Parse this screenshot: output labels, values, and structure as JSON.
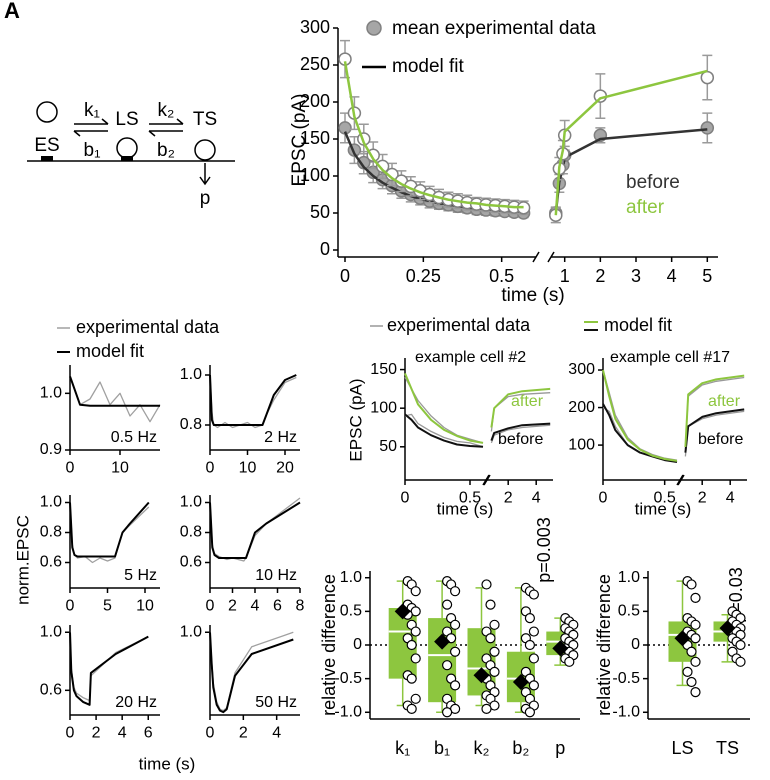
{
  "panel_label": "A",
  "diagram": {
    "states": [
      "ES",
      "LS",
      "TS"
    ],
    "rates": [
      "k₁",
      "b₁",
      "k₂",
      "b₂"
    ],
    "release": "p"
  },
  "chart_data": [
    {
      "type": "line",
      "ylabel": "EPSC (pA)",
      "xlabel": "time (s)",
      "legend": [
        "mean experimental data",
        "model fit"
      ],
      "xlim": [
        0,
        0.6
      ],
      "xticks": [
        0,
        0.25,
        0.5
      ],
      "x2lim": [
        0.7,
        5.3
      ],
      "x2ticks": [
        1,
        2,
        3,
        4,
        5
      ],
      "ylim": [
        0,
        300
      ],
      "yticks": [
        0,
        50,
        100,
        150,
        200,
        250,
        300
      ],
      "x": [
        0,
        0.03,
        0.06,
        0.09,
        0.12,
        0.15,
        0.18,
        0.21,
        0.24,
        0.27,
        0.3,
        0.33,
        0.36,
        0.39,
        0.42,
        0.45,
        0.48,
        0.51,
        0.54,
        0.57,
        0.75,
        0.85,
        0.95,
        1,
        2,
        5
      ],
      "series": [
        {
          "name": "before",
          "marker": true,
          "color": "#a6a6a6",
          "fit_color": "#333333",
          "values": [
            165,
            135,
            118,
            105,
            95,
            87,
            80,
            75,
            70,
            66,
            63,
            61,
            59,
            57,
            55,
            54,
            53,
            52,
            51,
            50,
            50,
            90,
            115,
            128,
            155,
            165
          ],
          "errors": [
            20,
            18,
            15,
            14,
            12,
            11,
            10,
            10,
            9,
            9,
            8,
            8,
            8,
            7,
            7,
            7,
            7,
            6,
            6,
            6,
            8,
            12,
            12,
            12,
            10,
            20
          ],
          "fit": [
            160,
            130,
            112,
            100,
            91,
            84,
            78,
            73,
            69,
            66,
            63,
            61,
            59,
            57,
            56,
            55,
            54,
            53,
            52,
            52,
            50,
            92,
            112,
            125,
            150,
            163
          ]
        },
        {
          "name": "after",
          "marker": true,
          "color": "#ffffff",
          "fit_color": "#8dc63f",
          "values": [
            258,
            185,
            150,
            128,
            113,
            102,
            93,
            86,
            80,
            75,
            71,
            68,
            66,
            64,
            62,
            61,
            60,
            59,
            58,
            57,
            47,
            110,
            130,
            155,
            208,
            233
          ],
          "errors": [
            25,
            22,
            20,
            18,
            16,
            15,
            14,
            13,
            12,
            11,
            11,
            10,
            10,
            10,
            9,
            9,
            9,
            9,
            9,
            9,
            10,
            15,
            18,
            20,
            30,
            30
          ],
          "fit": [
            255,
            180,
            145,
            123,
            108,
            97,
            89,
            83,
            78,
            74,
            71,
            68,
            66,
            64,
            63,
            61,
            60,
            59,
            58,
            58,
            47,
            112,
            135,
            160,
            205,
            242
          ]
        }
      ]
    },
    {
      "type": "line",
      "ylabel": "norm.EPSC",
      "xlabel": "time (s)",
      "legend": [
        "experimental data",
        "model fit"
      ],
      "annotation": "0.5 Hz",
      "xlim": [
        0,
        18
      ],
      "xticks": [
        0,
        10
      ],
      "ylim": [
        0.9,
        1.05
      ],
      "yticks": [
        0.9,
        {
          "value": 1,
          "label": "1.0"
        }
      ],
      "x": [
        0,
        2,
        4,
        6,
        8,
        10,
        12,
        14,
        16,
        18
      ],
      "series": [
        {
          "color": "#a0a0a0",
          "values": [
            1.03,
            0.98,
            0.99,
            1.02,
            0.98,
            1.0,
            0.96,
            0.98,
            0.95,
            0.98
          ]
        },
        {
          "color": "#000000",
          "values": [
            1.03,
            0.98,
            0.978,
            0.978,
            0.978,
            0.978,
            0.978,
            0.978,
            0.978,
            0.978
          ]
        }
      ]
    },
    {
      "type": "line",
      "annotation": "2 Hz",
      "xlim": [
        0,
        24
      ],
      "xticks": [
        0,
        10,
        20
      ],
      "ylim": [
        0.7,
        1.04
      ],
      "yticks": [
        0.8,
        {
          "value": 1,
          "label": "1.0"
        }
      ],
      "x": [
        0,
        0.5,
        1,
        2,
        4,
        6,
        8,
        10,
        12,
        14,
        15,
        17,
        20,
        23
      ],
      "series": [
        {
          "color": "#a0a0a0",
          "values": [
            1.0,
            0.85,
            0.8,
            0.79,
            0.81,
            0.79,
            0.8,
            0.81,
            0.79,
            0.8,
            0.84,
            0.9,
            0.97,
            0.99
          ]
        },
        {
          "color": "#000000",
          "values": [
            1.0,
            0.82,
            0.8,
            0.8,
            0.8,
            0.8,
            0.8,
            0.8,
            0.8,
            0.8,
            0.84,
            0.92,
            0.98,
            1.0
          ]
        }
      ]
    },
    {
      "type": "line",
      "annotation": "5 Hz",
      "xlim": [
        0,
        12
      ],
      "xticks": [
        0,
        5,
        10
      ],
      "ylim": [
        0.43,
        1.05
      ],
      "yticks": [
        0.6,
        0.8,
        {
          "value": 1,
          "label": "1.0"
        }
      ],
      "x": [
        0,
        0.3,
        0.6,
        1,
        2,
        3,
        4,
        5,
        6,
        7,
        8,
        10.5
      ],
      "series": [
        {
          "color": "#a0a0a0",
          "values": [
            1.0,
            0.72,
            0.65,
            0.63,
            0.64,
            0.6,
            0.63,
            0.61,
            0.63,
            0.8,
            0.85,
            0.97
          ]
        },
        {
          "color": "#000000",
          "values": [
            1.0,
            0.7,
            0.65,
            0.64,
            0.64,
            0.64,
            0.64,
            0.64,
            0.64,
            0.8,
            0.86,
            1.0
          ]
        }
      ]
    },
    {
      "type": "line",
      "annotation": "10 Hz",
      "xlim": [
        0,
        8
      ],
      "xticks": [
        0,
        2,
        4,
        6,
        8
      ],
      "ylim": [
        0.43,
        1.05
      ],
      "yticks": [
        0.6,
        0.8,
        {
          "value": 1,
          "label": "1.0"
        }
      ],
      "x": [
        0,
        0.2,
        0.4,
        0.8,
        1.5,
        2,
        3,
        3.2,
        4,
        5,
        8
      ],
      "series": [
        {
          "color": "#a0a0a0",
          "values": [
            1.0,
            0.72,
            0.66,
            0.64,
            0.62,
            0.63,
            0.61,
            0.63,
            0.78,
            0.86,
            1.03
          ]
        },
        {
          "color": "#000000",
          "values": [
            1.0,
            0.7,
            0.65,
            0.63,
            0.63,
            0.63,
            0.63,
            0.63,
            0.8,
            0.86,
            1.0
          ]
        }
      ]
    },
    {
      "type": "line",
      "annotation": "20 Hz",
      "xlim": [
        0,
        6.9
      ],
      "xticks": [
        0,
        2,
        4,
        6
      ],
      "ylim": [
        0.43,
        1.05
      ],
      "yticks": [
        0.6,
        {
          "value": 1,
          "label": "1.0"
        }
      ],
      "x": [
        0,
        0.1,
        0.3,
        0.5,
        1,
        1.5,
        1.6,
        3.5,
        6
      ],
      "series": [
        {
          "color": "#a0a0a0",
          "values": [
            1.0,
            0.75,
            0.62,
            0.58,
            0.55,
            0.53,
            0.7,
            0.86,
            0.97
          ]
        },
        {
          "color": "#000000",
          "values": [
            1.0,
            0.73,
            0.6,
            0.56,
            0.52,
            0.5,
            0.72,
            0.85,
            0.97
          ]
        }
      ]
    },
    {
      "type": "line",
      "annotation": "50 Hz",
      "xlim": [
        0,
        5.4
      ],
      "xticks": [
        0,
        2,
        4
      ],
      "ylim": [
        0.43,
        1.05
      ],
      "yticks": [
        {
          "value": 1,
          "label": "1.0"
        }
      ],
      "x": [
        0,
        0.1,
        0.2,
        0.4,
        0.6,
        0.8,
        1,
        1.5,
        2.5,
        5
      ],
      "series": [
        {
          "color": "#a0a0a0",
          "values": [
            1.0,
            0.8,
            0.65,
            0.52,
            0.47,
            0.46,
            0.48,
            0.72,
            0.9,
            1.0
          ]
        },
        {
          "color": "#000000",
          "values": [
            1.0,
            0.78,
            0.62,
            0.5,
            0.46,
            0.45,
            0.47,
            0.7,
            0.85,
            0.95
          ]
        }
      ]
    },
    {
      "type": "line",
      "title": "example cell #2",
      "ylabel": "EPSC (pA)",
      "xlabel": "time (s)",
      "legend": [
        "experimental data",
        "model fit"
      ],
      "xlim": [
        0,
        0.6
      ],
      "xticks": [
        0,
        0.5
      ],
      "x2lim": [
        0.7,
        5.2
      ],
      "x2ticks": [
        2,
        4
      ],
      "ylim": [
        7,
        165
      ],
      "yticks": [
        50,
        100,
        150
      ],
      "x": [
        0,
        0.05,
        0.1,
        0.2,
        0.3,
        0.4,
        0.5,
        0.6,
        0.8,
        1,
        2,
        3,
        5
      ],
      "series": [
        {
          "color": "#999999",
          "values": [
            90,
            92,
            80,
            70,
            62,
            57,
            55,
            50,
            55,
            65,
            72,
            75,
            78
          ]
        },
        {
          "color": "#999999",
          "values": [
            140,
            125,
            110,
            90,
            75,
            65,
            60,
            55,
            70,
            100,
            115,
            118,
            120
          ]
        },
        {
          "name": "before",
          "color": "#111111",
          "values": [
            92,
            85,
            75,
            65,
            58,
            53,
            51,
            50,
            58,
            68,
            74,
            78,
            80
          ]
        },
        {
          "name": "after",
          "color": "#8dc63f",
          "values": [
            145,
            125,
            105,
            85,
            72,
            64,
            58,
            55,
            75,
            100,
            118,
            122,
            125
          ]
        }
      ]
    },
    {
      "type": "line",
      "title": "example cell #17",
      "xlabel": "time (s)",
      "xlim": [
        0,
        0.6
      ],
      "xticks": [
        0,
        0.5
      ],
      "x2lim": [
        0.7,
        5.2
      ],
      "x2ticks": [
        2,
        4
      ],
      "ylim": [
        7,
        332
      ],
      "yticks": [
        100,
        200,
        300
      ],
      "x": [
        0,
        0.05,
        0.1,
        0.2,
        0.3,
        0.4,
        0.5,
        0.6,
        0.8,
        1,
        2,
        3,
        5
      ],
      "series": [
        {
          "color": "#999999",
          "values": [
            200,
            190,
            150,
            100,
            80,
            70,
            60,
            55,
            70,
            150,
            170,
            180,
            190
          ]
        },
        {
          "color": "#999999",
          "values": [
            300,
            240,
            180,
            120,
            90,
            75,
            65,
            60,
            90,
            230,
            260,
            270,
            280
          ]
        },
        {
          "name": "before",
          "color": "#111111",
          "values": [
            210,
            180,
            140,
            100,
            80,
            70,
            60,
            55,
            80,
            150,
            175,
            185,
            195
          ]
        },
        {
          "name": "after",
          "color": "#8dc63f",
          "values": [
            300,
            230,
            170,
            115,
            88,
            72,
            63,
            58,
            95,
            235,
            265,
            275,
            285
          ]
        }
      ]
    },
    {
      "type": "box",
      "ylabel": "relative difference",
      "annotation": "p=0.003",
      "color": "#8dc63f",
      "ylim": [
        -1.1,
        1.1
      ],
      "yticks": [
        {
          "value": -1,
          "label": "-1.0"
        },
        -0.5,
        0,
        0.5,
        {
          "value": 1,
          "label": "1.0"
        }
      ],
      "categories": [
        "k₁",
        "b₁",
        "k₂",
        "b₂",
        "p"
      ],
      "boxes": [
        {
          "low": -0.9,
          "q1": -0.5,
          "median": 0.2,
          "q3": 0.55,
          "high": 0.95,
          "mean": 0.5,
          "points": [
            0.95,
            0.9,
            0.8,
            0.6,
            0.55,
            0.5,
            0.45,
            0.3,
            0.2,
            0.1,
            0,
            -0.2,
            -0.45,
            -0.5,
            -0.8,
            -0.9,
            -0.95
          ]
        },
        {
          "low": -1,
          "q1": -0.85,
          "median": -0.15,
          "q3": 0.4,
          "high": 0.95,
          "mean": 0.05,
          "points": [
            0.95,
            0.9,
            0.8,
            0.6,
            0.4,
            0.3,
            0.2,
            0.1,
            -0.1,
            -0.3,
            -0.5,
            -0.6,
            -0.8,
            -0.9,
            -0.95,
            -1
          ]
        },
        {
          "low": -0.9,
          "q1": -0.75,
          "median": -0.35,
          "q3": 0.25,
          "high": 0.85,
          "mean": -0.45,
          "points": [
            0.9,
            0.6,
            0.3,
            0.2,
            0.1,
            -0.1,
            -0.2,
            -0.3,
            -0.4,
            -0.5,
            -0.6,
            -0.7,
            -0.75,
            -0.8,
            -0.9,
            -0.95
          ]
        },
        {
          "low": -1,
          "q1": -0.85,
          "median": -0.5,
          "q3": -0.1,
          "high": 0.85,
          "mean": -0.55,
          "points": [
            0.85,
            0.8,
            0.75,
            0.5,
            0.4,
            0.2,
            0.1,
            0,
            -0.2,
            -0.4,
            -0.5,
            -0.6,
            -0.7,
            -0.8,
            -0.9,
            -0.95,
            -1
          ]
        },
        {
          "low": -0.3,
          "q1": -0.15,
          "median": 0.05,
          "q3": 0.2,
          "high": 0.4,
          "mean": -0.05,
          "points": [
            0.4,
            0.35,
            0.3,
            0.25,
            0.2,
            0.15,
            0.1,
            0.05,
            0,
            -0.05,
            -0.1,
            -0.15,
            -0.2,
            -0.25
          ]
        }
      ]
    },
    {
      "type": "box",
      "ylabel": "relative difference",
      "annotation": "p=0.03",
      "color": "#8dc63f",
      "ylim": [
        -1.1,
        1.1
      ],
      "yticks": [
        {
          "value": -1,
          "label": "-1.0"
        },
        -0.5,
        0,
        0.5,
        {
          "value": 1,
          "label": "1.0"
        }
      ],
      "categories": [
        "LS",
        "TS"
      ],
      "boxes": [
        {
          "low": -0.6,
          "q1": -0.25,
          "median": 0.15,
          "q3": 0.35,
          "high": 0.95,
          "mean": 0.1,
          "points": [
            0.95,
            0.9,
            0.7,
            0.4,
            0.35,
            0.3,
            0.2,
            0.15,
            0.1,
            0,
            -0.1,
            -0.25,
            -0.4,
            -0.55,
            -0.7
          ]
        },
        {
          "low": -0.25,
          "q1": 0.05,
          "median": 0.2,
          "q3": 0.35,
          "high": 0.45,
          "mean": 0.25,
          "points": [
            0.5,
            0.45,
            0.4,
            0.35,
            0.3,
            0.25,
            0.2,
            0.2,
            0.15,
            0.1,
            0.05,
            0,
            -0.1,
            -0.2,
            -0.25
          ]
        }
      ]
    }
  ]
}
